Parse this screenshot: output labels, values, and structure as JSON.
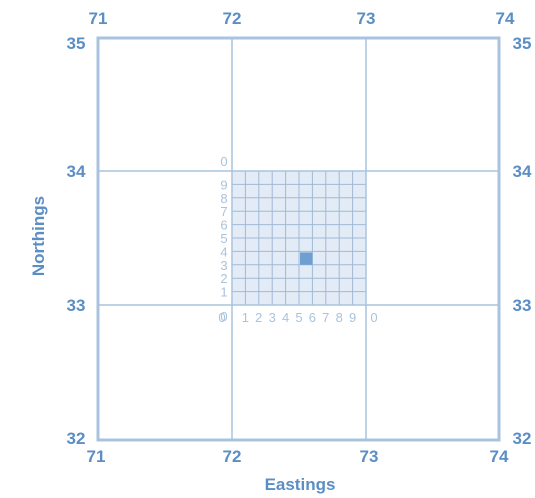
{
  "axes": {
    "x_title": "Eastings",
    "y_title": "Northings"
  },
  "eastings": [
    "71",
    "72",
    "73",
    "74"
  ],
  "northings": [
    "32",
    "33",
    "34",
    "35"
  ],
  "subgrid": {
    "x_digits": [
      "0",
      "1",
      "2",
      "3",
      "4",
      "5",
      "6",
      "7",
      "8",
      "9",
      "0"
    ],
    "y_digits": [
      "0",
      "1",
      "2",
      "3",
      "4",
      "5",
      "6",
      "7",
      "8",
      "9",
      "0"
    ],
    "highlight": {
      "easting_tenth": 5,
      "northing_tenth": 3
    }
  },
  "colors": {
    "grid_line": "#a9c3de",
    "label": "#5b8ec4",
    "small_label": "#a9c3de",
    "subgrid_fill": "#e3ecf6",
    "subgrid_line": "#9fbad6",
    "highlight": "#6f9fd0"
  }
}
